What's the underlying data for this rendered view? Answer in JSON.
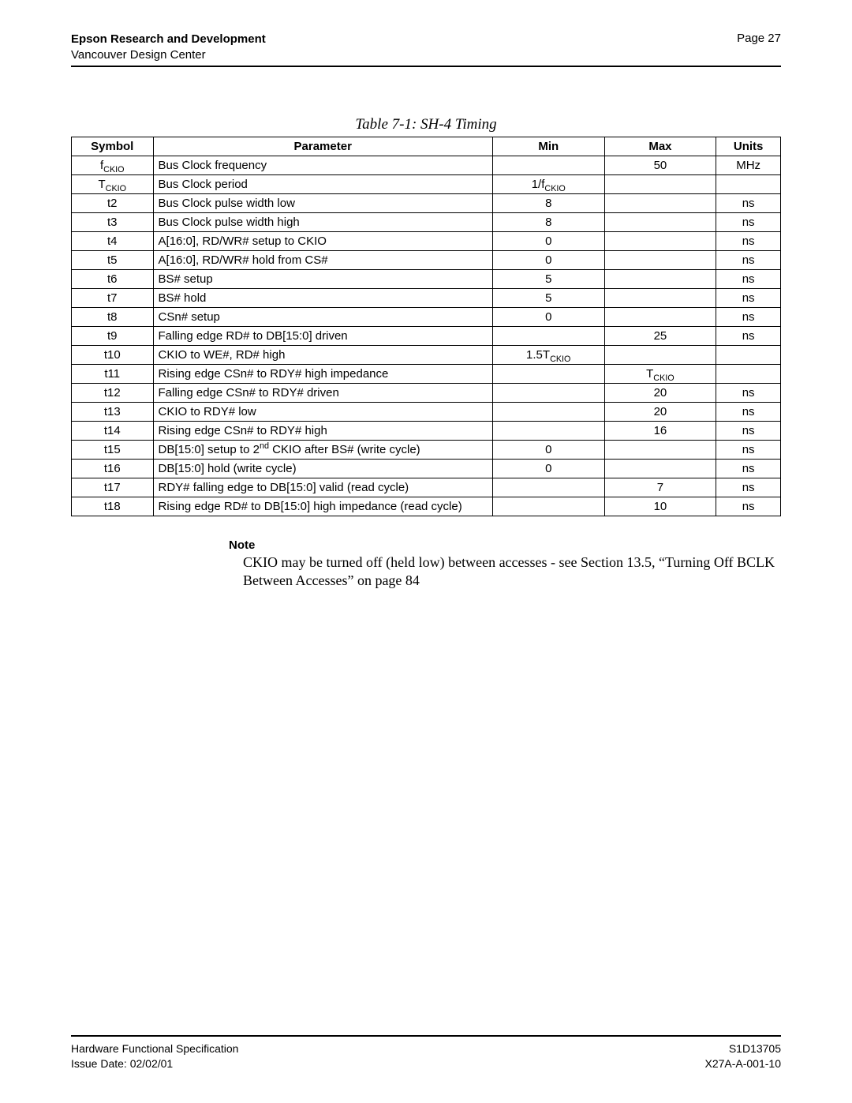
{
  "header": {
    "org": "Epson Research and Development",
    "sub": "Vancouver Design Center",
    "page": "Page 27"
  },
  "table": {
    "title": "Table 7-1: SH-4 Timing",
    "columns": [
      "Symbol",
      "Parameter",
      "Min",
      "Max",
      "Units"
    ],
    "rows": [
      {
        "sym_pre": "f",
        "sym_sub": "CKIO",
        "param": "Bus Clock frequency",
        "min": "",
        "max": "50",
        "units": "MHz"
      },
      {
        "sym_pre": "T",
        "sym_sub": "CKIO",
        "param": "Bus Clock period",
        "min_pre": "1/f",
        "min_sub": "CKIO",
        "max": "",
        "units": ""
      },
      {
        "sym": "t2",
        "param": "Bus Clock pulse width low",
        "min": "8",
        "max": "",
        "units": "ns"
      },
      {
        "sym": "t3",
        "param": "Bus Clock pulse width high",
        "min": "8",
        "max": "",
        "units": "ns"
      },
      {
        "sym": "t4",
        "param": "A[16:0], RD/WR# setup to CKIO",
        "min": "0",
        "max": "",
        "units": "ns"
      },
      {
        "sym": "t5",
        "param": "A[16:0], RD/WR# hold from CS#",
        "min": "0",
        "max": "",
        "units": "ns"
      },
      {
        "sym": "t6",
        "param": "BS# setup",
        "min": "5",
        "max": "",
        "units": "ns"
      },
      {
        "sym": "t7",
        "param": "BS# hold",
        "min": "5",
        "max": "",
        "units": "ns"
      },
      {
        "sym": "t8",
        "param": "CSn# setup",
        "min": "0",
        "max": "",
        "units": "ns"
      },
      {
        "sym": "t9",
        "param": "Falling edge RD# to DB[15:0] driven",
        "min": "",
        "max": "25",
        "units": "ns"
      },
      {
        "sym": "t10",
        "param": "CKIO to WE#, RD# high",
        "min_pre": "1.5T",
        "min_sub": "CKIO",
        "max": "",
        "units": ""
      },
      {
        "sym": "t11",
        "param": "Rising edge CSn# to RDY# high impedance",
        "min": "",
        "max_pre": "T",
        "max_sub": "CKIO",
        "units": ""
      },
      {
        "sym": "t12",
        "param": "Falling edge CSn# to RDY# driven",
        "min": "",
        "max": "20",
        "units": "ns"
      },
      {
        "sym": "t13",
        "param": "CKIO to RDY# low",
        "min": "",
        "max": "20",
        "units": "ns"
      },
      {
        "sym": "t14",
        "param": "Rising edge CSn# to RDY# high",
        "min": "",
        "max": "16",
        "units": "ns"
      },
      {
        "sym": "t15",
        "param_pre": "DB[15:0] setup to 2",
        "param_sup": "nd",
        "param_post": " CKIO after BS# (write cycle)",
        "min": "0",
        "max": "",
        "units": "ns"
      },
      {
        "sym": "t16",
        "param": "DB[15:0] hold (write cycle)",
        "min": "0",
        "max": "",
        "units": "ns"
      },
      {
        "sym": "t17",
        "param": "RDY# falling edge to DB[15:0] valid (read cycle)",
        "min": "",
        "max": "7",
        "units": "ns"
      },
      {
        "sym": "t18",
        "param": "Rising edge RD# to DB[15:0] high impedance (read cycle)",
        "min": "",
        "max": "10",
        "units": "ns"
      }
    ]
  },
  "note": {
    "heading": "Note",
    "body": "CKIO may be turned off (held low) between accesses - see Section 13.5, “Turning Off BCLK Between Accesses” on page 84"
  },
  "footer": {
    "left1": "Hardware Functional Specification",
    "left2": "Issue Date: 02/02/01",
    "right1": "S1D13705",
    "right2": "X27A-A-001-10"
  }
}
